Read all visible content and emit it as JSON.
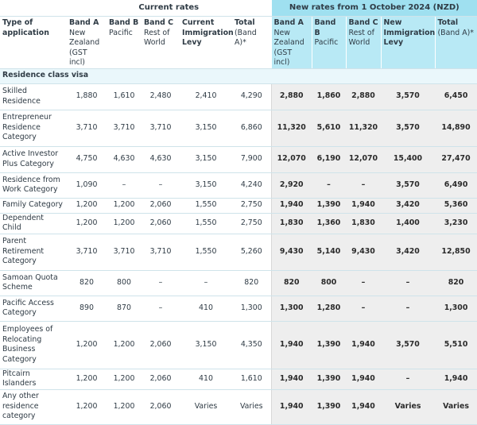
{
  "header": {
    "current_group": "Current rates",
    "new_group": "New rates from 1 October 2024 (NZD)",
    "type_col": "Type of application",
    "cur_cols": [
      {
        "bold": "Band A",
        "sub": "New Zealand (GST incl)"
      },
      {
        "bold": "Band B",
        "sub": "Pacific"
      },
      {
        "bold": "Band C",
        "sub": "Rest of World"
      },
      {
        "bold": "Current Immigration Levy",
        "sub": ""
      },
      {
        "bold": "Total",
        "sub": "(Band A)*"
      }
    ],
    "new_cols": [
      {
        "bold": "Band A",
        "sub": "New Zealand (GST incl)"
      },
      {
        "bold": "Band B",
        "sub": "Pacific"
      },
      {
        "bold": "Band C",
        "sub": "Rest of World"
      },
      {
        "bold": "New Immigration Levy",
        "sub": ""
      },
      {
        "bold": "Total",
        "sub": "(Band A)*"
      }
    ]
  },
  "section_title": "Residence class visa",
  "rows": [
    {
      "label": "Skilled Residence",
      "h": 33,
      "cur": [
        "1,880",
        "1,610",
        "2,480",
        "2,410",
        "4,290"
      ],
      "new": [
        "2,880",
        "1,860",
        "2,880",
        "3,570",
        "6,450"
      ]
    },
    {
      "label": "Entrepreneur Residence Category",
      "h": 46,
      "cur": [
        "3,710",
        "3,710",
        "3,710",
        "3,150",
        "6,860"
      ],
      "new": [
        "11,320",
        "5,610",
        "11,320",
        "3,570",
        "14,890"
      ]
    },
    {
      "label": "Active Investor Plus Category",
      "h": 33,
      "cur": [
        "4,750",
        "4,630",
        "4,630",
        "3,150",
        "7,900"
      ],
      "new": [
        "12,070",
        "6,190",
        "12,070",
        "15,400",
        "27,470"
      ]
    },
    {
      "label": "Residence from Work Category",
      "h": 32,
      "cur": [
        "1,090",
        "–",
        "–",
        "3,150",
        "4,240"
      ],
      "new": [
        "2,920",
        "–",
        "–",
        "3,570",
        "6,490"
      ]
    },
    {
      "label": "Family Category",
      "h": 19,
      "cur": [
        "1,200",
        "1,200",
        "2,060",
        "1,550",
        "2,750"
      ],
      "new": [
        "1,940",
        "1,390",
        "1,940",
        "3,420",
        "5,360"
      ]
    },
    {
      "label": "Dependent Child",
      "h": 19,
      "cur": [
        "1,200",
        "1,200",
        "2,060",
        "1,550",
        "2,750"
      ],
      "new": [
        "1,830",
        "1,360",
        "1,830",
        "1,400",
        "3,230"
      ]
    },
    {
      "label": "Parent Retirement Category",
      "h": 46,
      "cur": [
        "3,710",
        "3,710",
        "3,710",
        "1,550",
        "5,260"
      ],
      "new": [
        "9,430",
        "5,140",
        "9,430",
        "3,420",
        "12,850"
      ]
    },
    {
      "label": "Samoan Quota Scheme",
      "h": 32,
      "cur": [
        "820",
        "800",
        "–",
        "–",
        "820"
      ],
      "new": [
        "820",
        "800",
        "–",
        "–",
        "820"
      ]
    },
    {
      "label": "Pacific Access Category",
      "h": 32,
      "cur": [
        "890",
        "870",
        "–",
        "410",
        "1,300"
      ],
      "new": [
        "1,300",
        "1,280",
        "–",
        "–",
        "1,300"
      ]
    },
    {
      "label": "Employees of Relocating Business Category",
      "h": 60,
      "cur": [
        "1,200",
        "1,200",
        "2,060",
        "3,150",
        "4,350"
      ],
      "new": [
        "1,940",
        "1,390",
        "1,940",
        "3,570",
        "5,510"
      ]
    },
    {
      "label": "Pitcairn Islanders",
      "h": 19,
      "cur": [
        "1,200",
        "1,200",
        "2,060",
        "410",
        "1,610"
      ],
      "new": [
        "1,940",
        "1,390",
        "1,940",
        "–",
        "1,940"
      ]
    },
    {
      "label": "Any other residence category",
      "h": 44,
      "cur": [
        "1,200",
        "1,200",
        "2,060",
        "Varies",
        "Varies"
      ],
      "new": [
        "1,940",
        "1,390",
        "1,940",
        "Varies",
        "Varies"
      ]
    }
  ]
}
